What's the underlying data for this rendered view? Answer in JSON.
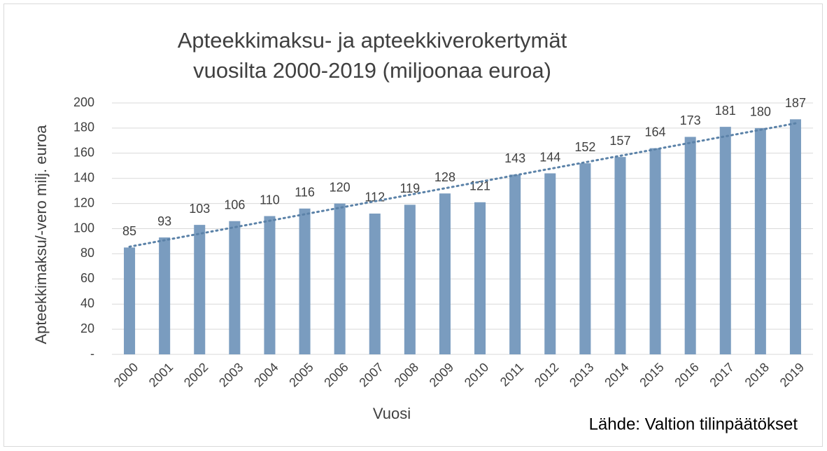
{
  "chart_data": {
    "type": "bar",
    "title": [
      "Apteekkimaksu- ja apteekkiverokertymät",
      "vuosilta 2000-2019 (miljoonaa euroa)"
    ],
    "categories": [
      "2000",
      "2001",
      "2002",
      "2003",
      "2004",
      "2005",
      "2006",
      "2007",
      "2008",
      "2009",
      "2010",
      "2011",
      "2012",
      "2013",
      "2014",
      "2015",
      "2016",
      "2017",
      "2018",
      "2019"
    ],
    "values": [
      85,
      93,
      103,
      106,
      110,
      116,
      120,
      112,
      119,
      128,
      121,
      143,
      144,
      152,
      157,
      164,
      173,
      181,
      180,
      187
    ],
    "color": "#7a9cbf",
    "ylim": [
      0,
      200
    ],
    "yticks": [
      {
        "value": 0,
        "label": "-"
      },
      20,
      40,
      60,
      80,
      100,
      120,
      140,
      160,
      180,
      200
    ],
    "grid": true,
    "trendline": "linear",
    "y_label": "Apteekkimaksu/-vero milj. euroa",
    "x_label": "Vuosi",
    "annotation": "Lähde: Valtion tilinpäätökset"
  }
}
